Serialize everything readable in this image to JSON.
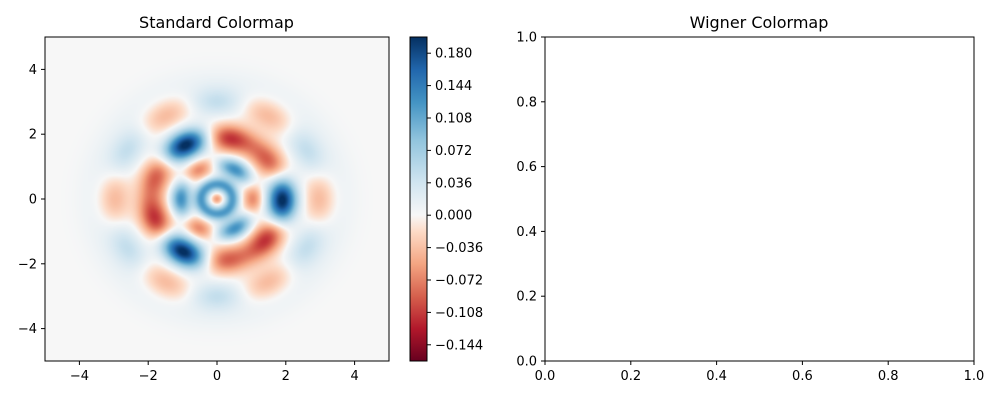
{
  "chart_data": [
    {
      "type": "heatmap",
      "title": "Standard Colormap",
      "xlabel": "",
      "ylabel": "",
      "xlim": [
        -5,
        5
      ],
      "ylim": [
        -5,
        5
      ],
      "xticks": [
        -4,
        -2,
        0,
        2,
        4
      ],
      "yticks": [
        -4,
        -2,
        0,
        2,
        4
      ],
      "xtick_labels": [
        "−4",
        "−2",
        "0",
        "2",
        "4"
      ],
      "ytick_labels": [
        "−4",
        "−2",
        "0",
        "2",
        "4"
      ],
      "colormap": "RdBu",
      "colorbar": {
        "range": [
          -0.162,
          0.198
        ],
        "ticks": [
          0.18,
          0.144,
          0.108,
          0.072,
          0.036,
          0.0,
          -0.036,
          -0.072,
          -0.108,
          -0.144
        ],
        "tick_labels": [
          "0.180",
          "0.144",
          "0.108",
          "0.072",
          "0.036",
          "0.000",
          "−0.036",
          "−0.072",
          "−0.108",
          "−0.144"
        ]
      },
      "field": {
        "description": "Wigner quasi-probability distribution with 6-fold rotational symmetry, range approx -0.16 to 0.19",
        "peak_max": 0.19,
        "peak_min": -0.155,
        "blobs": [
          {
            "x": 1.9,
            "y": 0.0,
            "value": 0.19
          },
          {
            "x": -0.95,
            "y": 1.6,
            "value": 0.19
          },
          {
            "x": -0.95,
            "y": -1.6,
            "value": 0.19
          },
          {
            "x": -1.3,
            "y": 0.0,
            "value": -0.15
          },
          {
            "x": 0.65,
            "y": 1.15,
            "value": -0.15
          },
          {
            "x": 0.65,
            "y": -1.15,
            "value": -0.15
          },
          {
            "x": 0.0,
            "y": 0.0,
            "value": 0.12
          },
          {
            "x": 0.0,
            "y": 0.0,
            "value": -0.1
          }
        ]
      }
    },
    {
      "type": "heatmap",
      "title": "Wigner Colormap",
      "xlabel": "",
      "ylabel": "",
      "xlim": [
        0.0,
        1.0
      ],
      "ylim": [
        0.0,
        1.0
      ],
      "xticks": [
        0.0,
        0.2,
        0.4,
        0.6,
        0.8,
        1.0
      ],
      "yticks": [
        0.0,
        0.2,
        0.4,
        0.6,
        0.8,
        1.0
      ],
      "xtick_labels": [
        "0.0",
        "0.2",
        "0.4",
        "0.6",
        "0.8",
        "1.0"
      ],
      "ytick_labels": [
        "0.0",
        "0.2",
        "0.4",
        "0.6",
        "0.8",
        "1.0"
      ],
      "empty": true
    }
  ]
}
